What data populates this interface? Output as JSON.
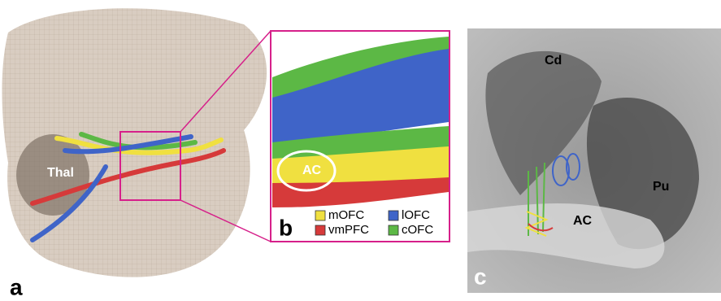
{
  "panels": [
    {
      "label": "a",
      "annotations": [
        "Thal"
      ]
    },
    {
      "label": "b",
      "annotations": [
        "AC"
      ],
      "legend": [
        {
          "name": "mOFC",
          "color": "#f0e040"
        },
        {
          "name": "vmPFC",
          "color": "#d63a3a"
        },
        {
          "name": "lOFC",
          "color": "#3f64c8"
        },
        {
          "name": "cOFC",
          "color": "#5cb845"
        }
      ]
    },
    {
      "label": "c",
      "annotations": [
        "Cd",
        "Pu",
        "AC"
      ]
    }
  ]
}
